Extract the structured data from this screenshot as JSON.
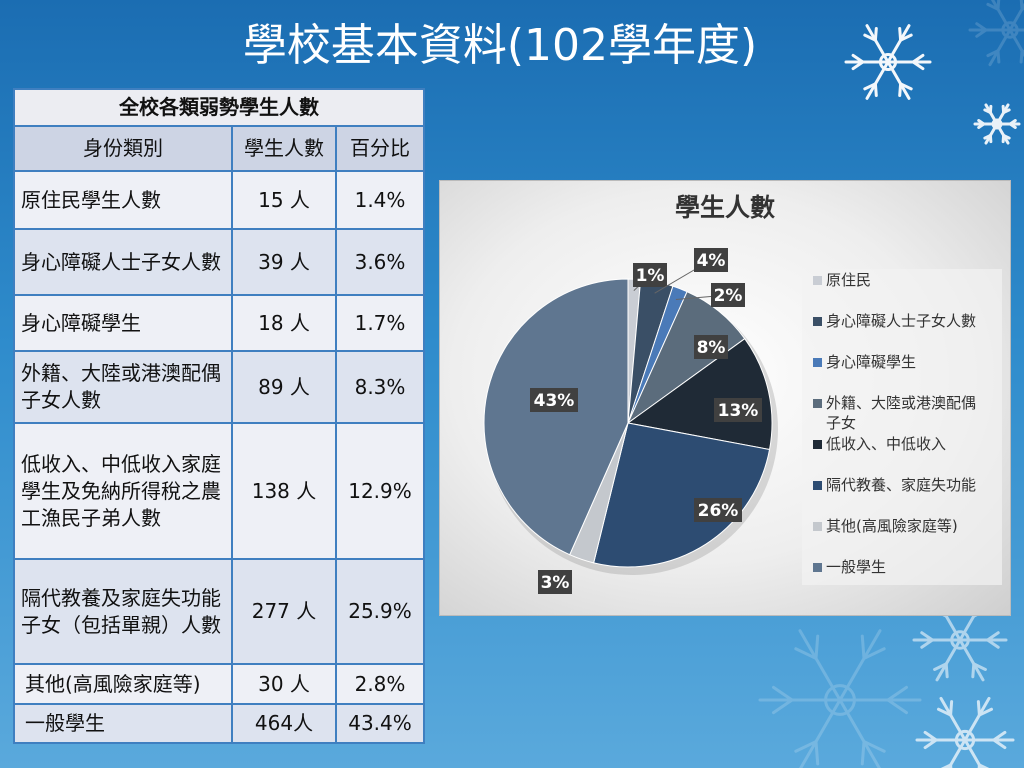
{
  "page_title": "學校基本資料(102學年度)",
  "table": {
    "header": "全校各類弱勢學生人數",
    "columns": [
      "身份類別",
      "學生人數",
      "百分比"
    ],
    "rows": [
      {
        "category": "原住民學生人數",
        "count": "15 人",
        "percent": "1.4%"
      },
      {
        "category": "身心障礙人士子女人數",
        "count": "39 人",
        "percent": "3.6%"
      },
      {
        "category": "身心障礙學生",
        "count": "18 人",
        "percent": "1.7%"
      },
      {
        "category": "外籍、大陸或港澳配偶子女人數",
        "count": "89 人",
        "percent": "8.3%"
      },
      {
        "category": "低收入、中低收入家庭學生及免納所得稅之農工漁民子弟人數",
        "count": "138 人",
        "percent": "12.9%"
      },
      {
        "category": "隔代教養及家庭失功能子女（包括單親）人數",
        "count": "277 人",
        "percent": "25.9%"
      },
      {
        "category": "其他(高風險家庭等)",
        "count": "30 人",
        "percent": "2.8%"
      },
      {
        "category": "一般學生",
        "count": "464人",
        "percent": "43.4%"
      }
    ]
  },
  "chart_data": {
    "type": "pie",
    "title": "學生人數",
    "legend_position": "right",
    "categories": [
      "原住民",
      "身心障礙人士子女人數",
      "身心障礙學生",
      "外籍、大陸或港澳配偶子女",
      "低收入、中低收入",
      "隔代教養、家庭失功能",
      "其他(高風險家庭等)",
      "一般學生"
    ],
    "values": [
      15,
      39,
      18,
      89,
      138,
      277,
      30,
      464
    ],
    "data_labels": [
      "1%",
      "4%",
      "2%",
      "8%",
      "13%",
      "26%",
      "3%",
      "43%"
    ],
    "colors": [
      "#c9cdd4",
      "#3a4f66",
      "#4a7ab8",
      "#5b6c7c",
      "#1f2a36",
      "#2d4c72",
      "#c4c8cd",
      "#5f7690"
    ]
  }
}
